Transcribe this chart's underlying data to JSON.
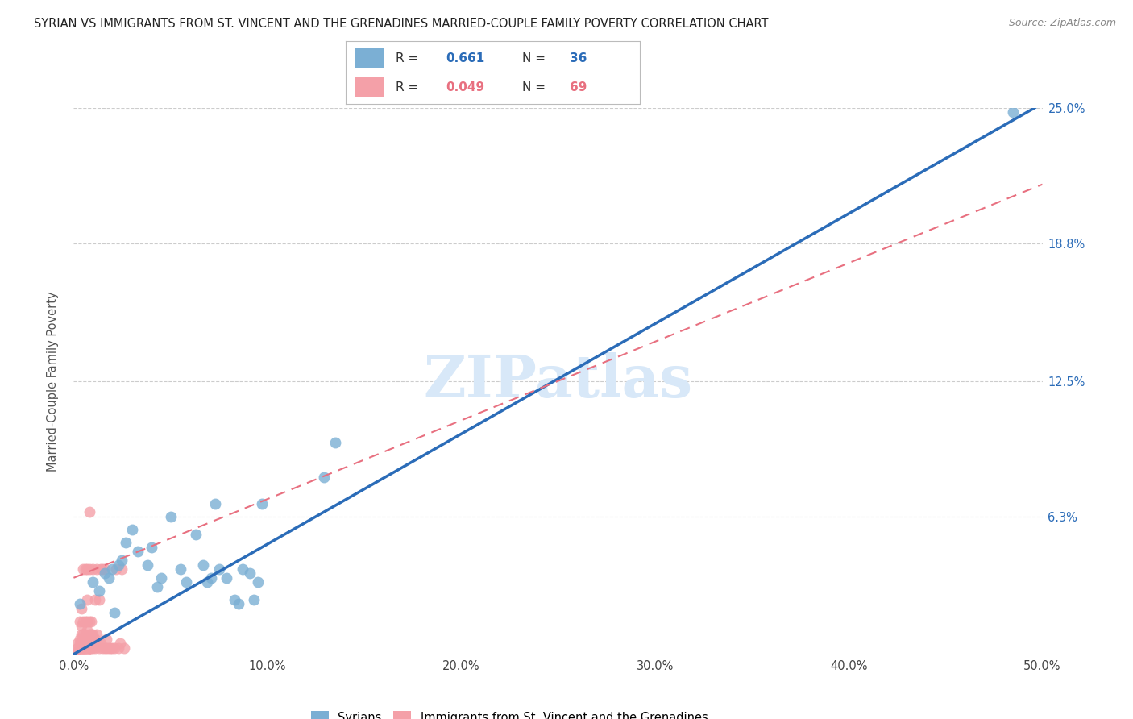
{
  "title": "SYRIAN VS IMMIGRANTS FROM ST. VINCENT AND THE GRENADINES MARRIED-COUPLE FAMILY POVERTY CORRELATION CHART",
  "source": "Source: ZipAtlas.com",
  "ylabel": "Married-Couple Family Poverty",
  "xlim": [
    0.0,
    0.5
  ],
  "ylim": [
    0.0,
    0.25
  ],
  "xtick_vals": [
    0.0,
    0.1,
    0.2,
    0.3,
    0.4,
    0.5
  ],
  "xticklabels": [
    "0.0%",
    "10.0%",
    "20.0%",
    "30.0%",
    "40.0%",
    "50.0%"
  ],
  "ytick_vals": [
    0.063,
    0.125,
    0.188,
    0.25
  ],
  "ytick_labels": [
    "6.3%",
    "12.5%",
    "18.8%",
    "25.0%"
  ],
  "R_blue": 0.661,
  "N_blue": 36,
  "R_pink": 0.049,
  "N_pink": 69,
  "blue_color": "#7BAFD4",
  "pink_color": "#F4A0A8",
  "trendline_blue_color": "#2B6CB8",
  "trendline_pink_color": "#E87080",
  "watermark_text": "ZIPatlas",
  "watermark_color": "#D8E8F8",
  "blue_label": "Syrians",
  "pink_label": "Immigrants from St. Vincent and the Grenadines",
  "blue_x": [
    0.003,
    0.01,
    0.013,
    0.016,
    0.018,
    0.02,
    0.021,
    0.023,
    0.025,
    0.027,
    0.03,
    0.033,
    0.038,
    0.04,
    0.043,
    0.045,
    0.05,
    0.055,
    0.058,
    0.063,
    0.067,
    0.069,
    0.071,
    0.073,
    0.075,
    0.079,
    0.083,
    0.085,
    0.087,
    0.091,
    0.093,
    0.095,
    0.097,
    0.129,
    0.135,
    0.485
  ],
  "blue_y": [
    0.023,
    0.033,
    0.029,
    0.037,
    0.035,
    0.039,
    0.019,
    0.041,
    0.043,
    0.051,
    0.057,
    0.047,
    0.041,
    0.049,
    0.031,
    0.035,
    0.063,
    0.039,
    0.033,
    0.055,
    0.041,
    0.033,
    0.035,
    0.069,
    0.039,
    0.035,
    0.025,
    0.023,
    0.039,
    0.037,
    0.025,
    0.033,
    0.069,
    0.081,
    0.097,
    0.248
  ],
  "pink_x": [
    0.0,
    0.001,
    0.002,
    0.002,
    0.003,
    0.003,
    0.003,
    0.003,
    0.004,
    0.004,
    0.004,
    0.004,
    0.005,
    0.005,
    0.005,
    0.005,
    0.005,
    0.006,
    0.006,
    0.006,
    0.006,
    0.006,
    0.006,
    0.007,
    0.007,
    0.007,
    0.007,
    0.007,
    0.007,
    0.008,
    0.008,
    0.008,
    0.008,
    0.008,
    0.008,
    0.009,
    0.009,
    0.009,
    0.009,
    0.009,
    0.01,
    0.01,
    0.01,
    0.01,
    0.011,
    0.011,
    0.011,
    0.012,
    0.012,
    0.012,
    0.013,
    0.013,
    0.014,
    0.014,
    0.015,
    0.015,
    0.016,
    0.016,
    0.017,
    0.017,
    0.018,
    0.019,
    0.02,
    0.021,
    0.022,
    0.023,
    0.024,
    0.025,
    0.026
  ],
  "pink_y": [
    0.0,
    0.001,
    0.003,
    0.005,
    0.002,
    0.005,
    0.007,
    0.015,
    0.003,
    0.009,
    0.013,
    0.021,
    0.003,
    0.006,
    0.009,
    0.015,
    0.039,
    0.003,
    0.005,
    0.007,
    0.009,
    0.015,
    0.039,
    0.002,
    0.005,
    0.011,
    0.015,
    0.025,
    0.039,
    0.003,
    0.006,
    0.009,
    0.015,
    0.039,
    0.065,
    0.003,
    0.005,
    0.007,
    0.009,
    0.015,
    0.003,
    0.006,
    0.009,
    0.039,
    0.003,
    0.007,
    0.025,
    0.005,
    0.009,
    0.039,
    0.003,
    0.025,
    0.005,
    0.039,
    0.003,
    0.039,
    0.003,
    0.039,
    0.003,
    0.007,
    0.003,
    0.003,
    0.003,
    0.003,
    0.039,
    0.003,
    0.005,
    0.039,
    0.003
  ],
  "blue_trendline_x0": 0.0,
  "blue_trendline_y0": 0.0,
  "blue_trendline_x1": 0.5,
  "blue_trendline_y1": 0.252,
  "pink_trendline_x0": 0.0,
  "pink_trendline_y0": 0.035,
  "pink_trendline_x1": 0.5,
  "pink_trendline_y1": 0.215
}
